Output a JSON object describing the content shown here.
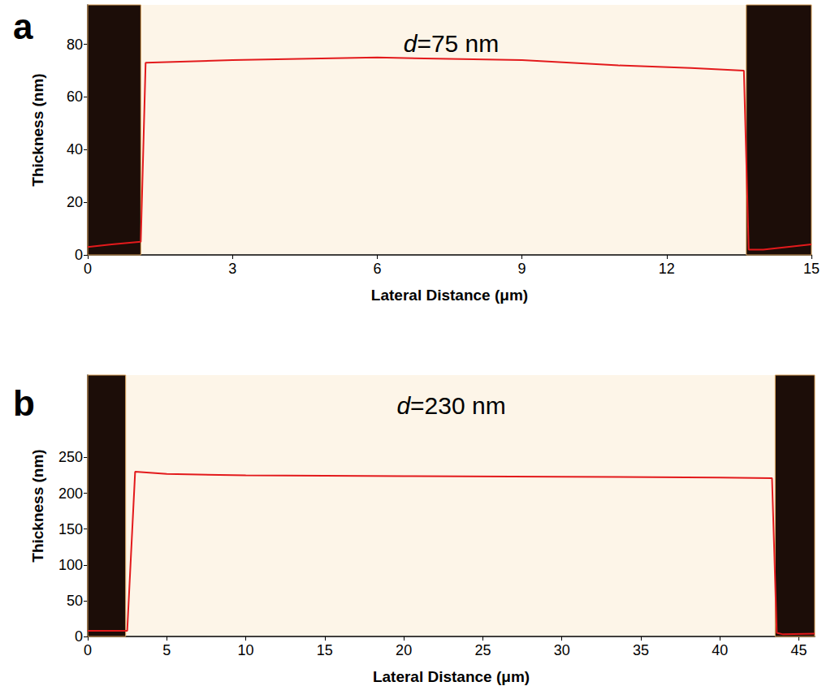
{
  "chart_data": [
    {
      "type": "line",
      "panel": "a",
      "annotation": "d=75 nm",
      "x_label": "Lateral Distance (μm)",
      "y_label": "Thickness (nm)",
      "x": [
        0,
        0.5,
        1.1,
        1.2,
        3,
        6,
        9,
        11,
        12.5,
        13.6,
        13.7,
        14,
        15
      ],
      "values": [
        3,
        4,
        5,
        73,
        74,
        75,
        74,
        72,
        71,
        70,
        2,
        2,
        4
      ],
      "color": "#e31a1c",
      "substrate_regions": [
        [
          0,
          1.1
        ],
        [
          13.65,
          15
        ]
      ],
      "xlim": [
        0,
        15
      ],
      "xticks": [
        0,
        3,
        6,
        9,
        12,
        15
      ],
      "ylim": [
        0,
        95
      ],
      "yticks": [
        0,
        20,
        40,
        60,
        80
      ],
      "grid": false
    },
    {
      "type": "line",
      "panel": "b",
      "annotation": "d=230 nm",
      "x_label": "Lateral Distance (μm)",
      "y_label": "Thickness (nm)",
      "x": [
        0,
        2.5,
        3,
        5,
        10,
        20,
        30,
        40,
        43.3,
        43.6,
        44,
        46
      ],
      "values": [
        8,
        8,
        230,
        227,
        225,
        224,
        223,
        222,
        221,
        5,
        3,
        4
      ],
      "color": "#e31a1c",
      "substrate_regions": [
        [
          0,
          2.4
        ],
        [
          43.5,
          46
        ]
      ],
      "xlim": [
        0,
        46
      ],
      "xticks": [
        0,
        5,
        10,
        15,
        20,
        25,
        30,
        35,
        40,
        45
      ],
      "ylim": [
        0,
        365
      ],
      "yticks": [
        0,
        50,
        100,
        150,
        200,
        250
      ],
      "grid": false
    }
  ]
}
